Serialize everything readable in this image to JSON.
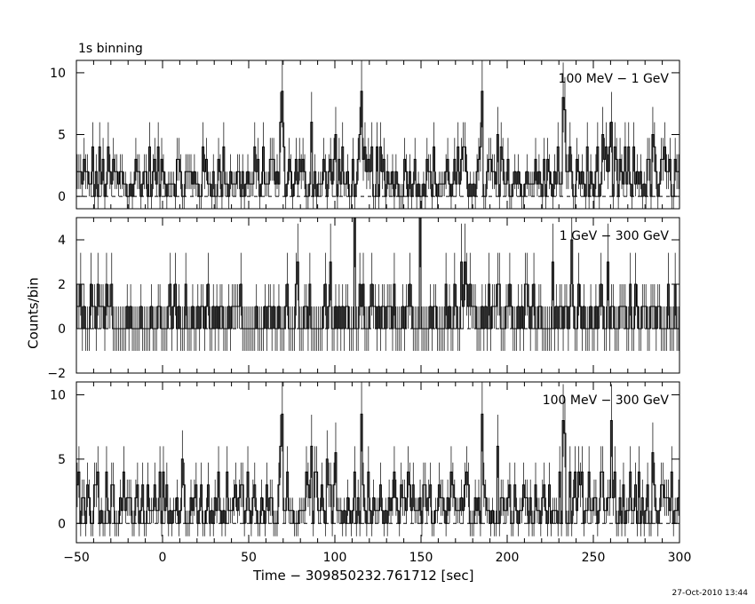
{
  "header": {
    "binning_note": "1s binning"
  },
  "footer": {
    "timestamp": "27-Oct-2010 13:44"
  },
  "chart_data": {
    "type": "line",
    "xlabel": "Time − 309850232.761712 [sec]",
    "ylabel": "Counts/bin",
    "xlim": [
      -50,
      300
    ],
    "x_ticks": [
      "−50",
      "0",
      "50",
      "100",
      "150",
      "200",
      "250",
      "300"
    ],
    "grid": false,
    "panels": [
      {
        "name": "100 MeV − 1 GeV",
        "ylim": [
          -1,
          11
        ],
        "y_ticks": [
          "0",
          "5",
          "10"
        ],
        "y_tick_values": [
          0,
          5,
          10
        ],
        "peaks": [
          [
            68,
            6.0
          ],
          [
            69,
            8.5
          ],
          [
            86,
            6.0
          ],
          [
            100,
            5.0
          ],
          [
            115,
            8.5
          ],
          [
            185,
            8.5
          ],
          [
            194,
            5.0
          ],
          [
            232,
            8.0
          ],
          [
            233,
            7.0
          ],
          [
            260,
            6.0
          ],
          [
            284,
            5.0
          ]
        ]
      },
      {
        "name": "1 GeV − 300 GeV",
        "ylim": [
          -2,
          5
        ],
        "y_ticks": [
          "−2",
          "0",
          "2",
          "4"
        ],
        "y_tick_values": [
          -2,
          0,
          2,
          4
        ],
        "peaks": [
          [
            78,
            3.0
          ],
          [
            111,
            5.0
          ],
          [
            149,
            5.0
          ],
          [
            237,
            4.0
          ],
          [
            258,
            3.0
          ]
        ]
      },
      {
        "name": "100 MeV − 300 GeV",
        "ylim": [
          -1.5,
          11
        ],
        "y_ticks": [
          "0",
          "5",
          "10"
        ],
        "y_tick_values": [
          0,
          5,
          10
        ],
        "peaks": [
          [
            68,
            6.0
          ],
          [
            69,
            8.5
          ],
          [
            86,
            6.0
          ],
          [
            100,
            5.5
          ],
          [
            115,
            8.5
          ],
          [
            185,
            8.5
          ],
          [
            194,
            6.0
          ],
          [
            232,
            8.0
          ],
          [
            233,
            7.0
          ],
          [
            260,
            8.0
          ],
          [
            284,
            5.5
          ]
        ]
      }
    ]
  }
}
